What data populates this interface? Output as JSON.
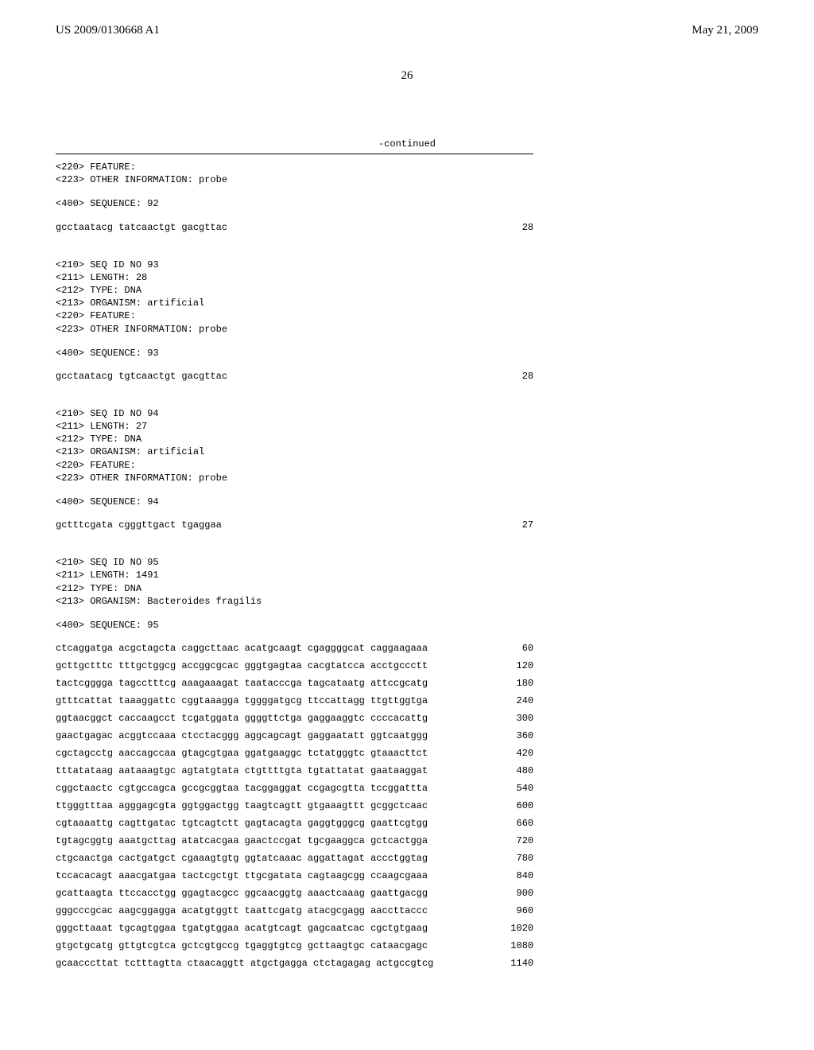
{
  "header": {
    "left": "US 2009/0130668 A1",
    "right": "May 21, 2009",
    "page_number": "26"
  },
  "continued_label": "-continued",
  "sections": [
    {
      "meta": [
        "<220> FEATURE:",
        "<223> OTHER INFORMATION: probe"
      ],
      "sequence_label": "<400> SEQUENCE: 92",
      "sequence_lines": [
        {
          "text": "gcctaatacg tatcaactgt gacgttac",
          "num": "28"
        }
      ]
    },
    {
      "meta": [
        "<210> SEQ ID NO 93",
        "<211> LENGTH: 28",
        "<212> TYPE: DNA",
        "<213> ORGANISM: artificial",
        "<220> FEATURE:",
        "<223> OTHER INFORMATION: probe"
      ],
      "sequence_label": "<400> SEQUENCE: 93",
      "sequence_lines": [
        {
          "text": "gcctaatacg tgtcaactgt gacgttac",
          "num": "28"
        }
      ]
    },
    {
      "meta": [
        "<210> SEQ ID NO 94",
        "<211> LENGTH: 27",
        "<212> TYPE: DNA",
        "<213> ORGANISM: artificial",
        "<220> FEATURE:",
        "<223> OTHER INFORMATION: probe"
      ],
      "sequence_label": "<400> SEQUENCE: 94",
      "sequence_lines": [
        {
          "text": "gctttcgata cgggttgact tgaggaa",
          "num": "27"
        }
      ]
    },
    {
      "meta": [
        "<210> SEQ ID NO 95",
        "<211> LENGTH: 1491",
        "<212> TYPE: DNA",
        "<213> ORGANISM: Bacteroides fragilis"
      ],
      "sequence_label": "<400> SEQUENCE: 95",
      "sequence_lines": [
        {
          "text": "ctcaggatga acgctagcta caggcttaac acatgcaagt cgaggggcat caggaagaaa",
          "num": "60"
        },
        {
          "text": "gcttgctttc tttgctggcg accggcgcac gggtgagtaa cacgtatcca acctgccctt",
          "num": "120"
        },
        {
          "text": "tactcgggga tagcctttcg aaagaaagat taatacccga tagcataatg attccgcatg",
          "num": "180"
        },
        {
          "text": "gtttcattat taaaggattc cggtaaagga tggggatgcg ttccattagg ttgttggtga",
          "num": "240"
        },
        {
          "text": "ggtaacggct caccaagcct tcgatggata ggggttctga gaggaaggtc ccccacattg",
          "num": "300"
        },
        {
          "text": "gaactgagac acggtccaaa ctcctacggg aggcagcagt gaggaatatt ggtcaatggg",
          "num": "360"
        },
        {
          "text": "cgctagcctg aaccagccaa gtagcgtgaa ggatgaaggc tctatgggtc gtaaacttct",
          "num": "420"
        },
        {
          "text": "tttatataag aataaagtgc agtatgtata ctgttttgta tgtattatat gaataaggat",
          "num": "480"
        },
        {
          "text": "cggctaactc cgtgccagca gccgcggtaa tacggaggat ccgagcgtta tccggattta",
          "num": "540"
        },
        {
          "text": "ttgggtttaa agggagcgta ggtggactgg taagtcagtt gtgaaagttt gcggctcaac",
          "num": "600"
        },
        {
          "text": "cgtaaaattg cagttgatac tgtcagtctt gagtacagta gaggtgggcg gaattcgtgg",
          "num": "660"
        },
        {
          "text": "tgtagcggtg aaatgcttag atatcacgaa gaactccgat tgcgaaggca gctcactgga",
          "num": "720"
        },
        {
          "text": "ctgcaactga cactgatgct cgaaagtgtg ggtatcaaac aggattagat accctggtag",
          "num": "780"
        },
        {
          "text": "tccacacagt aaacgatgaa tactcgctgt ttgcgatata cagtaagcgg ccaagcgaaa",
          "num": "840"
        },
        {
          "text": "gcattaagta ttccacctgg ggagtacgcc ggcaacggtg aaactcaaag gaattgacgg",
          "num": "900"
        },
        {
          "text": "gggcccgcac aagcggagga acatgtggtt taattcgatg atacgcgagg aaccttaccc",
          "num": "960"
        },
        {
          "text": "gggcttaaat tgcagtggaa tgatgtggaa acatgtcagt gagcaatcac cgctgtgaag",
          "num": "1020"
        },
        {
          "text": "gtgctgcatg gttgtcgtca gctcgtgccg tgaggtgtcg gcttaagtgc cataacgagc",
          "num": "1080"
        },
        {
          "text": "gcaacccttat tctttagtta ctaacaggtt atgctgagga ctctagagag actgccgtcg",
          "num": "1140"
        }
      ]
    }
  ]
}
